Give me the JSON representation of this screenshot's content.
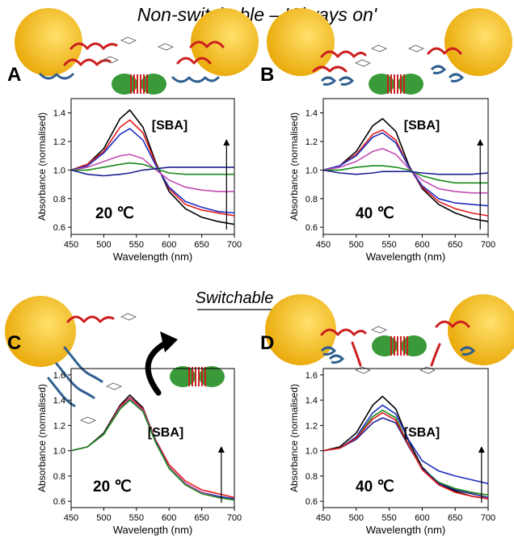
{
  "header": {
    "top_title": "Non-switchable – 'Always on'",
    "mid_title": "Switchable"
  },
  "colors": {
    "gold": "#e8a400",
    "gold_light": "#ffe16b",
    "strand_red": "#cc1f1f",
    "strand_blue": "#2f5f8f",
    "series_black": "#000000",
    "series_red": "#e21b1b",
    "series_magenta": "#c34bb4",
    "series_green": "#1a8a1a",
    "series_blue": "#1f2fbf",
    "series_navy": "#1f1f8f"
  },
  "icons": {
    "arrow": "curved-arrow-icon",
    "protein": "protein-dimer-icon",
    "particle": "gold-nanoparticle-icon"
  },
  "chart_data": [
    {
      "panel": "A",
      "type": "line",
      "annotation": "[SBA]",
      "temperature": "20 ℃",
      "xlabel": "Wavelength (nm)",
      "ylabel": "Absorbance (normalised)",
      "xlim": [
        450,
        700
      ],
      "ylim": [
        0.55,
        1.5
      ],
      "xticks": [
        450,
        500,
        550,
        600,
        650,
        700
      ],
      "yticks": [
        0.6,
        0.8,
        1.0,
        1.2,
        1.4
      ],
      "x": [
        450,
        475,
        500,
        525,
        540,
        560,
        580,
        600,
        625,
        650,
        675,
        700
      ],
      "series": [
        {
          "color": "#000000",
          "values": [
            1.0,
            1.04,
            1.15,
            1.36,
            1.42,
            1.3,
            1.05,
            0.85,
            0.73,
            0.67,
            0.64,
            0.62
          ]
        },
        {
          "color": "#e21b1b",
          "values": [
            1.0,
            1.04,
            1.13,
            1.3,
            1.35,
            1.26,
            1.04,
            0.87,
            0.76,
            0.72,
            0.7,
            0.68
          ]
        },
        {
          "color": "#1f2fbf",
          "values": [
            1.0,
            1.03,
            1.12,
            1.25,
            1.29,
            1.21,
            1.03,
            0.88,
            0.78,
            0.74,
            0.71,
            0.7
          ]
        },
        {
          "color": "#c34bb4",
          "values": [
            1.0,
            1.02,
            1.06,
            1.1,
            1.11,
            1.08,
            1.0,
            0.93,
            0.88,
            0.86,
            0.85,
            0.85
          ]
        },
        {
          "color": "#1a8a1a",
          "values": [
            1.0,
            1.0,
            1.02,
            1.04,
            1.05,
            1.04,
            1.01,
            0.98,
            0.97,
            0.97,
            0.97,
            0.97
          ]
        },
        {
          "color": "#1f1f8f",
          "values": [
            1.0,
            0.97,
            0.96,
            0.97,
            0.98,
            1.0,
            1.01,
            1.02,
            1.02,
            1.02,
            1.02,
            1.02
          ]
        }
      ],
      "arrow_up_at_x": 688
    },
    {
      "panel": "B",
      "type": "line",
      "annotation": "[SBA]",
      "temperature": "40 ℃",
      "xlabel": "Wavelength (nm)",
      "ylabel": "Absorbance (normalised)",
      "xlim": [
        450,
        700
      ],
      "ylim": [
        0.55,
        1.5
      ],
      "xticks": [
        450,
        500,
        550,
        600,
        650,
        700
      ],
      "yticks": [
        0.6,
        0.8,
        1.0,
        1.2,
        1.4
      ],
      "x": [
        450,
        475,
        500,
        525,
        540,
        560,
        580,
        600,
        625,
        650,
        675,
        700
      ],
      "series": [
        {
          "color": "#000000",
          "values": [
            1.0,
            1.03,
            1.13,
            1.31,
            1.36,
            1.27,
            1.03,
            0.87,
            0.76,
            0.7,
            0.66,
            0.64
          ]
        },
        {
          "color": "#e21b1b",
          "values": [
            1.0,
            1.03,
            1.11,
            1.25,
            1.28,
            1.21,
            1.02,
            0.88,
            0.78,
            0.73,
            0.7,
            0.68
          ]
        },
        {
          "color": "#1f2fbf",
          "values": [
            1.0,
            1.03,
            1.1,
            1.23,
            1.26,
            1.19,
            1.02,
            0.89,
            0.8,
            0.77,
            0.76,
            0.75
          ]
        },
        {
          "color": "#c34bb4",
          "values": [
            1.0,
            1.02,
            1.06,
            1.13,
            1.15,
            1.11,
            1.01,
            0.93,
            0.87,
            0.85,
            0.84,
            0.84
          ]
        },
        {
          "color": "#1a8a1a",
          "values": [
            1.0,
            1.0,
            1.02,
            1.03,
            1.03,
            1.02,
            1.0,
            0.96,
            0.93,
            0.91,
            0.91,
            0.91
          ]
        },
        {
          "color": "#1f1f8f",
          "values": [
            1.0,
            0.98,
            0.97,
            0.98,
            0.99,
            0.99,
            0.99,
            0.98,
            0.97,
            0.97,
            0.97,
            0.98
          ]
        }
      ],
      "arrow_up_at_x": 688
    },
    {
      "panel": "C",
      "type": "line",
      "annotation": "[SBA]",
      "temperature": "20 ℃",
      "xlabel": "Wavelength (nm)",
      "ylabel": "Absorbance (normalised)",
      "xlim": [
        450,
        700
      ],
      "ylim": [
        0.55,
        1.65
      ],
      "xticks": [
        450,
        500,
        550,
        600,
        650,
        700
      ],
      "yticks": [
        0.6,
        0.8,
        1.0,
        1.2,
        1.4,
        1.6
      ],
      "x": [
        450,
        475,
        500,
        525,
        540,
        560,
        580,
        600,
        625,
        650,
        675,
        700
      ],
      "series": [
        {
          "color": "#000000",
          "values": [
            1.0,
            1.03,
            1.14,
            1.36,
            1.44,
            1.34,
            1.07,
            0.87,
            0.74,
            0.67,
            0.63,
            0.61
          ]
        },
        {
          "color": "#e21b1b",
          "values": [
            1.0,
            1.03,
            1.13,
            1.35,
            1.42,
            1.33,
            1.08,
            0.89,
            0.76,
            0.69,
            0.66,
            0.63
          ]
        },
        {
          "color": "#1f2fbf",
          "values": [
            1.0,
            1.03,
            1.13,
            1.34,
            1.41,
            1.32,
            1.07,
            0.87,
            0.74,
            0.67,
            0.64,
            0.62
          ]
        },
        {
          "color": "#c34bb4",
          "values": [
            1.0,
            1.03,
            1.13,
            1.34,
            1.41,
            1.32,
            1.06,
            0.87,
            0.74,
            0.67,
            0.63,
            0.61
          ]
        },
        {
          "color": "#1a8a1a",
          "values": [
            1.0,
            1.03,
            1.13,
            1.33,
            1.4,
            1.31,
            1.06,
            0.86,
            0.73,
            0.66,
            0.63,
            0.61
          ]
        }
      ],
      "arrow_up_at_x": 680
    },
    {
      "panel": "D",
      "type": "line",
      "annotation": "[SBA]",
      "temperature": "40 ℃",
      "xlabel": "Wavelength (nm)",
      "ylabel": "Absorbance (normalised)",
      "xlim": [
        450,
        700
      ],
      "ylim": [
        0.55,
        1.65
      ],
      "xticks": [
        450,
        500,
        550,
        600,
        650,
        700
      ],
      "yticks": [
        0.6,
        0.8,
        1.0,
        1.2,
        1.4,
        1.6
      ],
      "x": [
        450,
        475,
        500,
        525,
        540,
        560,
        580,
        600,
        625,
        650,
        675,
        700
      ],
      "series": [
        {
          "color": "#000000",
          "values": [
            1.0,
            1.03,
            1.14,
            1.36,
            1.43,
            1.33,
            1.07,
            0.87,
            0.74,
            0.68,
            0.64,
            0.62
          ]
        },
        {
          "color": "#1f2fbf",
          "values": [
            1.0,
            1.02,
            1.11,
            1.3,
            1.36,
            1.29,
            1.08,
            0.92,
            0.84,
            0.8,
            0.77,
            0.74
          ]
        },
        {
          "color": "#1a8a1a",
          "values": [
            1.0,
            1.02,
            1.1,
            1.27,
            1.32,
            1.26,
            1.04,
            0.86,
            0.75,
            0.7,
            0.67,
            0.65
          ]
        },
        {
          "color": "#1f1f8f",
          "values": [
            1.0,
            1.02,
            1.09,
            1.22,
            1.26,
            1.22,
            1.03,
            0.86,
            0.74,
            0.69,
            0.66,
            0.63
          ]
        },
        {
          "color": "#e21b1b",
          "values": [
            1.0,
            1.02,
            1.1,
            1.25,
            1.3,
            1.24,
            1.04,
            0.85,
            0.73,
            0.67,
            0.64,
            0.62
          ]
        }
      ],
      "arrow_up_at_x": 690
    }
  ]
}
